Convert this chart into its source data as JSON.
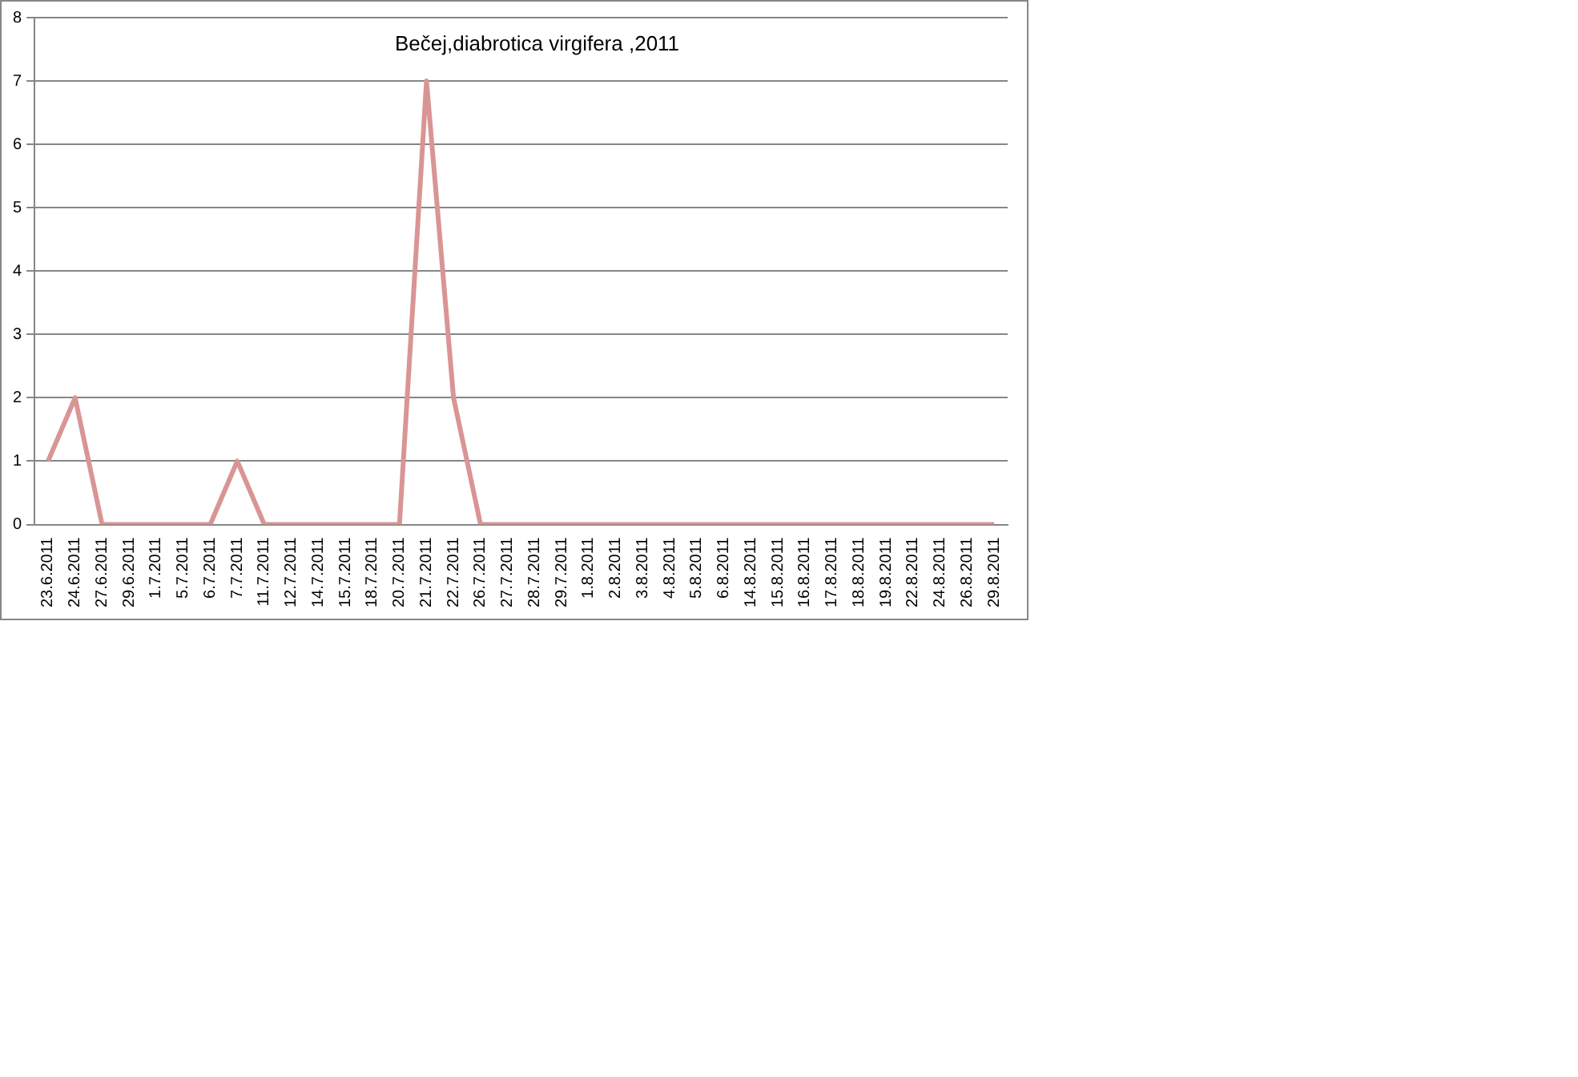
{
  "chart_data": {
    "type": "line",
    "title": "Bečej,diabrotica virgifera ,2011",
    "categories": [
      "23.6.2011",
      "24.6.2011",
      "27.6.2011",
      "29.6.2011",
      "1.7.2011",
      "5.7.2011",
      "6.7.2011",
      "7.7.2011",
      "11.7.2011",
      "12.7.2011",
      "14.7.2011",
      "15.7.2011",
      "18.7.2011",
      "20.7.2011",
      "21.7.2011",
      "22.7.2011",
      "26.7.2011",
      "27.7.2011",
      "28.7.2011",
      "29.7.2011",
      "1.8.2011",
      "2.8.2011",
      "3.8.2011",
      "4.8.2011",
      "5.8.2011",
      "6.8.2011",
      "14.8.2011",
      "15.8.2011",
      "16.8.2011",
      "17.8.2011",
      "18.8.2011",
      "19.8.2011",
      "22.8.2011",
      "24.8.2011",
      "26.8.2011",
      "29.8.2011"
    ],
    "series": [
      {
        "color": "#d99594",
        "values": [
          1,
          2,
          0,
          0,
          0,
          0,
          0,
          1,
          0,
          0,
          0,
          0,
          0,
          0,
          7,
          2,
          0,
          0,
          0,
          0,
          0,
          0,
          0,
          0,
          0,
          0,
          0,
          0,
          0,
          0,
          0,
          0,
          0,
          0,
          0,
          0
        ]
      }
    ],
    "ylim": [
      0,
      8
    ],
    "yticks": [
      0,
      1,
      2,
      3,
      4,
      5,
      6,
      7,
      8
    ],
    "grid": "y",
    "legend": false,
    "marker": "none",
    "line_style": "solid"
  }
}
